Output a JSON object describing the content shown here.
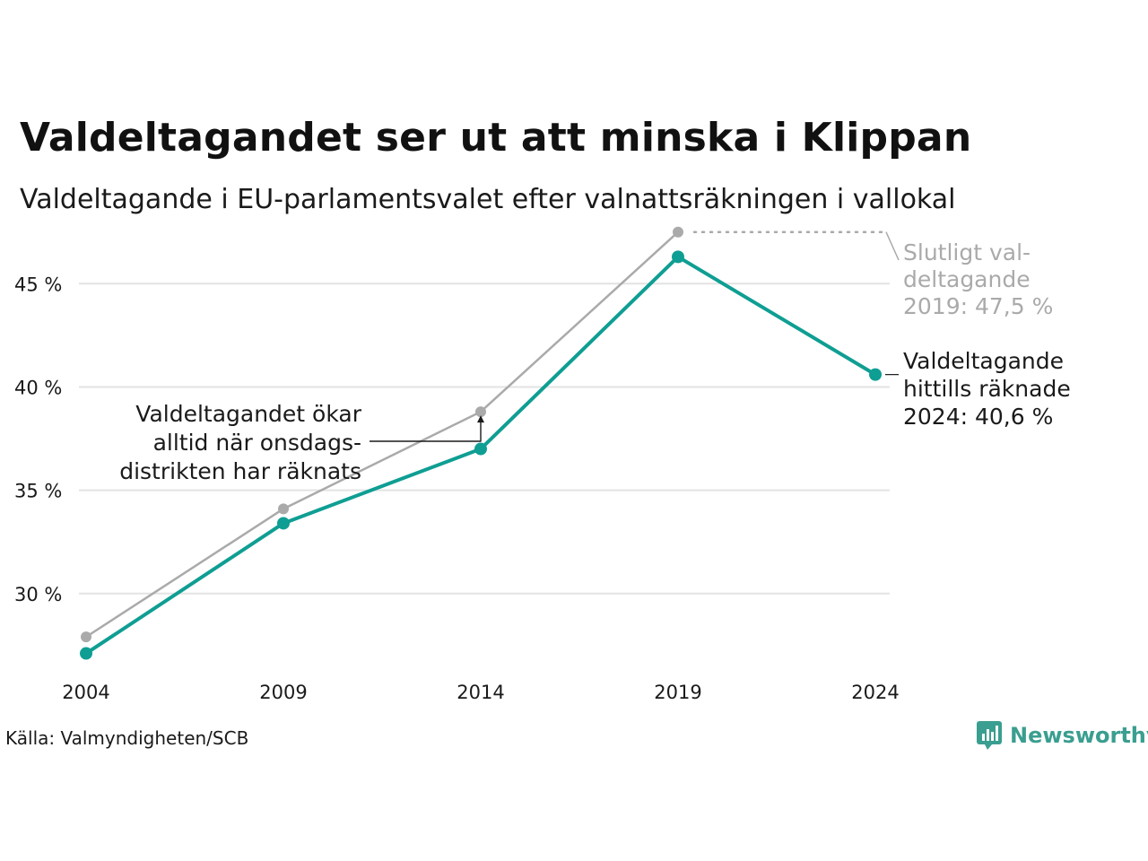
{
  "title": "Valdeltagandet ser ut att minska i Klippan",
  "subtitle": "Valdeltagande i EU-parlamentsvalet efter valnattsräkningen i vallokal",
  "source": "Källa: Valmyndigheten/SCB",
  "logo": {
    "icon": "newsworthy-logo-icon",
    "text": "Newsworthy"
  },
  "colors": {
    "final": "#aaaaaa",
    "counted": "#0f9e93",
    "grid": "#e3e3e3",
    "text": "#1a1a1a",
    "gray_text": "#aaaaaa"
  },
  "chart_data": {
    "type": "line",
    "x": [
      "2004",
      "2009",
      "2014",
      "2019",
      "2024"
    ],
    "series": [
      {
        "key": "final",
        "values": [
          27.9,
          34.1,
          38.8,
          47.5,
          null
        ]
      },
      {
        "key": "counted",
        "values": [
          27.1,
          33.4,
          37.0,
          46.3,
          40.6
        ]
      }
    ],
    "yticks": [
      {
        "value": 30,
        "label": "30 %"
      },
      {
        "value": 35,
        "label": "35 %"
      },
      {
        "value": 40,
        "label": "40 %"
      },
      {
        "value": 45,
        "label": "45 %"
      }
    ],
    "ylim": [
      25.3,
      48.4
    ],
    "grid": true,
    "annotations": {
      "final_label": [
        "Slutligt val-",
        "deltagande",
        "2019: 47,5 %"
      ],
      "counted_label": [
        "Valdeltagande",
        "hittills räknade",
        "2024: 40,6 %"
      ],
      "note": [
        "Valdeltagandet ökar",
        "alltid när onsdags-",
        "distrikten har räknats"
      ]
    }
  }
}
